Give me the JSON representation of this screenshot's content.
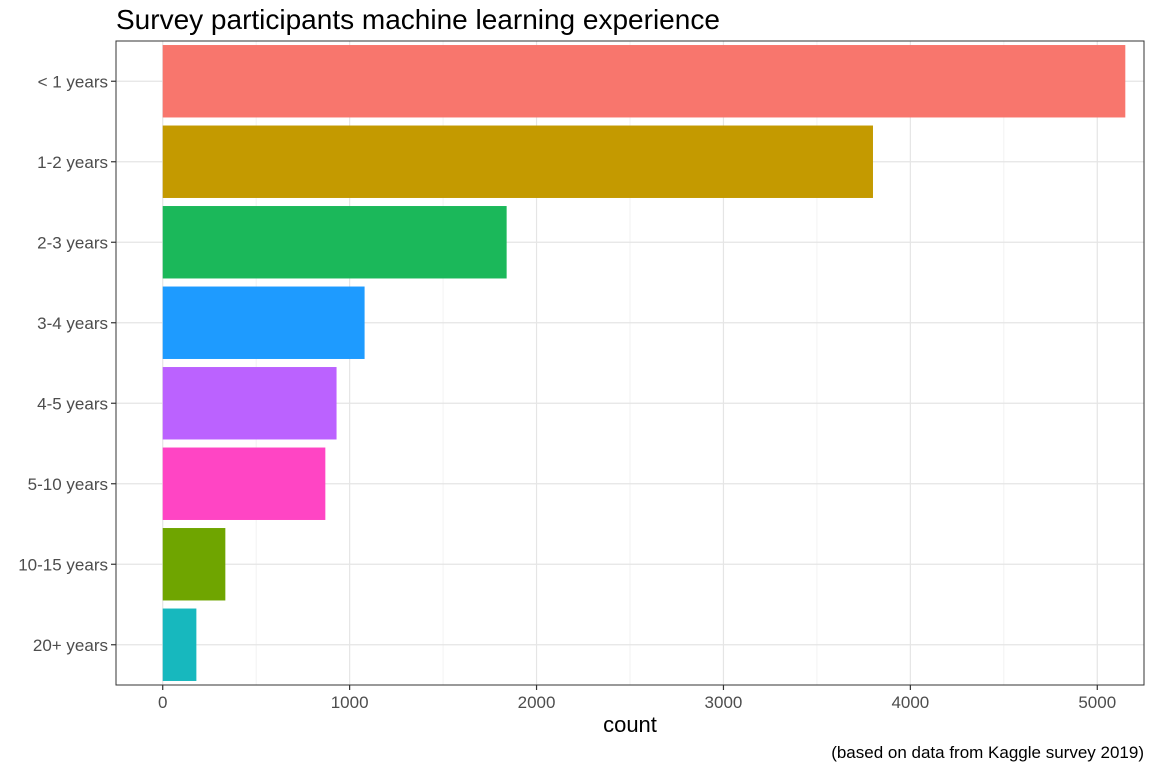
{
  "chart_data": {
    "type": "bar",
    "orientation": "horizontal",
    "title": "Survey participants machine learning experience",
    "xlabel": "count",
    "ylabel": "",
    "caption": "(based on data from Kaggle survey 2019)",
    "categories": [
      "< 1 years",
      "1-2 years",
      "2-3 years",
      "3-4 years",
      "4-5 years",
      "5-10 years",
      "10-15 years",
      "20+ years"
    ],
    "values": [
      5150,
      3800,
      1840,
      1080,
      930,
      870,
      335,
      180
    ],
    "colors": [
      "#F8766D",
      "#C49A00",
      "#1BB85A",
      "#1E9BFF",
      "#BB62FF",
      "#FF45C4",
      "#6FA500",
      "#17B8BE"
    ],
    "xlim": [
      -250,
      5250
    ],
    "xticks": [
      0,
      1000,
      2000,
      3000,
      4000,
      5000
    ],
    "grid": true,
    "legend": "none"
  }
}
